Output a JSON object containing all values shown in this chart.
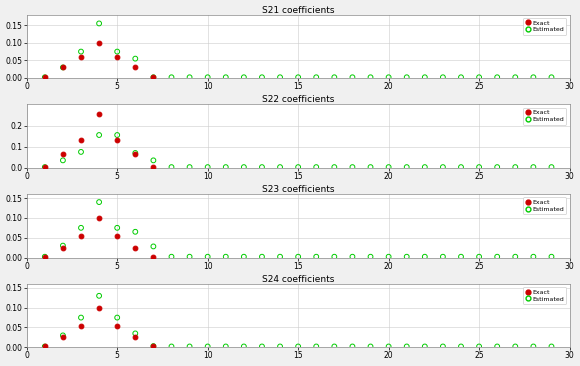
{
  "subplots": [
    {
      "title": "S21 coefficients",
      "ylim": [
        0,
        0.18
      ],
      "yticks": [
        0,
        0.05,
        0.1,
        0.15
      ],
      "exact_x": [
        1,
        2,
        3,
        4,
        5,
        6,
        7
      ],
      "exact_y": [
        0.002,
        0.03,
        0.06,
        0.1,
        0.06,
        0.03,
        0.002
      ],
      "estimated_x": [
        1,
        2,
        3,
        4,
        5,
        6,
        7,
        8,
        9,
        10,
        11,
        12,
        13,
        14,
        15,
        16,
        17,
        18,
        19,
        20,
        21,
        22,
        23,
        24,
        25,
        26,
        27,
        28,
        29
      ],
      "estimated_y": [
        0.002,
        0.03,
        0.075,
        0.155,
        0.075,
        0.055,
        0.002,
        0.002,
        0.002,
        0.002,
        0.002,
        0.002,
        0.002,
        0.002,
        0.002,
        0.002,
        0.002,
        0.002,
        0.002,
        0.002,
        0.002,
        0.002,
        0.002,
        0.002,
        0.002,
        0.002,
        0.002,
        0.002,
        0.002
      ]
    },
    {
      "title": "S22 coefficients",
      "ylim": [
        0,
        0.3
      ],
      "yticks": [
        0,
        0.1,
        0.2
      ],
      "exact_x": [
        1,
        2,
        3,
        4,
        5,
        6,
        7
      ],
      "exact_y": [
        0.003,
        0.065,
        0.13,
        0.255,
        0.13,
        0.065,
        0.003
      ],
      "estimated_x": [
        1,
        2,
        3,
        4,
        5,
        6,
        7,
        8,
        9,
        10,
        11,
        12,
        13,
        14,
        15,
        16,
        17,
        18,
        19,
        20,
        21,
        22,
        23,
        24,
        25,
        26,
        27,
        28,
        29
      ],
      "estimated_y": [
        0.003,
        0.035,
        0.075,
        0.155,
        0.155,
        0.07,
        0.035,
        0.003,
        0.003,
        0.003,
        0.003,
        0.003,
        0.003,
        0.003,
        0.003,
        0.003,
        0.003,
        0.003,
        0.003,
        0.003,
        0.003,
        0.003,
        0.003,
        0.003,
        0.003,
        0.003,
        0.003,
        0.003,
        0.003
      ]
    },
    {
      "title": "S23 coefficients",
      "ylim": [
        0,
        0.16
      ],
      "yticks": [
        0,
        0.05,
        0.1,
        0.15
      ],
      "exact_x": [
        1,
        2,
        3,
        4,
        5,
        6,
        7
      ],
      "exact_y": [
        0.002,
        0.025,
        0.055,
        0.1,
        0.055,
        0.025,
        0.002
      ],
      "estimated_x": [
        1,
        2,
        3,
        4,
        5,
        6,
        7,
        8,
        9,
        10,
        11,
        12,
        13,
        14,
        15,
        16,
        17,
        18,
        19,
        20,
        21,
        22,
        23,
        24,
        25,
        26,
        27,
        28,
        29
      ],
      "estimated_y": [
        0.002,
        0.03,
        0.075,
        0.14,
        0.075,
        0.065,
        0.028,
        0.002,
        0.002,
        0.002,
        0.002,
        0.002,
        0.002,
        0.002,
        0.002,
        0.002,
        0.002,
        0.002,
        0.002,
        0.002,
        0.002,
        0.002,
        0.002,
        0.002,
        0.002,
        0.002,
        0.002,
        0.002,
        0.002
      ]
    },
    {
      "title": "S24 coefficients",
      "ylim": [
        0,
        0.16
      ],
      "yticks": [
        0,
        0.05,
        0.1,
        0.15
      ],
      "exact_x": [
        1,
        2,
        3,
        4,
        5,
        6,
        7
      ],
      "exact_y": [
        0.002,
        0.025,
        0.055,
        0.1,
        0.055,
        0.025,
        0.002
      ],
      "estimated_x": [
        1,
        2,
        3,
        4,
        5,
        6,
        7,
        8,
        9,
        10,
        11,
        12,
        13,
        14,
        15,
        16,
        17,
        18,
        19,
        20,
        21,
        22,
        23,
        24,
        25,
        26,
        27,
        28,
        29
      ],
      "estimated_y": [
        0.002,
        0.03,
        0.075,
        0.13,
        0.075,
        0.035,
        0.003,
        0.002,
        0.002,
        0.002,
        0.002,
        0.002,
        0.002,
        0.002,
        0.002,
        0.002,
        0.002,
        0.002,
        0.002,
        0.002,
        0.002,
        0.002,
        0.002,
        0.002,
        0.002,
        0.002,
        0.002,
        0.002,
        0.002
      ]
    }
  ],
  "exact_color": "#cc0000",
  "estimated_color": "#00cc00",
  "fig_facecolor": "#f0f0f0",
  "axes_facecolor": "#ffffff",
  "xlim": [
    0,
    30
  ],
  "xticks": [
    0,
    5,
    10,
    15,
    20,
    25,
    30
  ]
}
